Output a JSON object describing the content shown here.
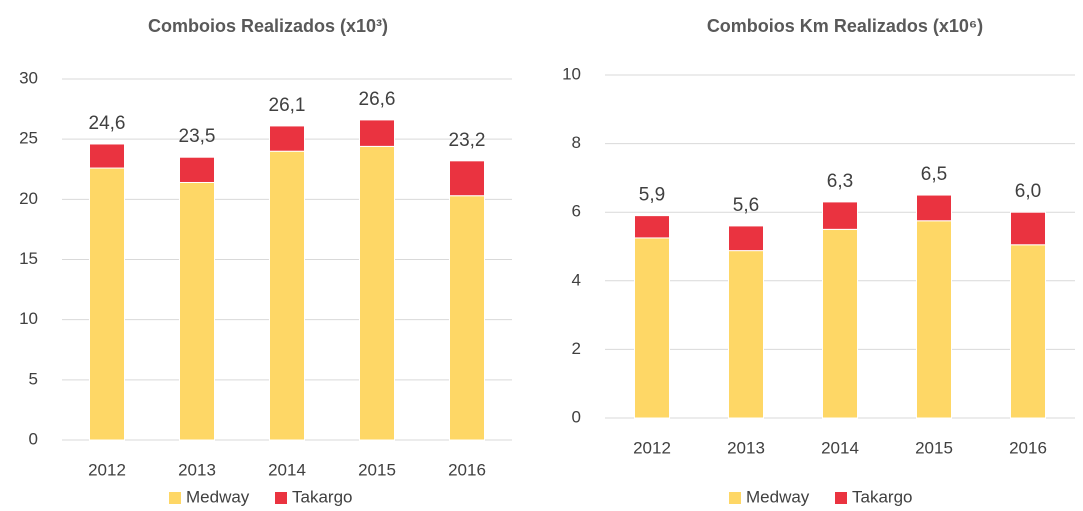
{
  "chart_data": [
    {
      "type": "bar",
      "stacked": true,
      "title": "Comboios Realizados (x10³)",
      "categories": [
        "2012",
        "2013",
        "2014",
        "2015",
        "2016"
      ],
      "series": [
        {
          "name": "Medway",
          "color": "#fed766",
          "values": [
            22.6,
            21.4,
            24.0,
            24.4,
            20.3
          ]
        },
        {
          "name": "Takargo",
          "color": "#ea3340",
          "values": [
            2.0,
            2.1,
            2.1,
            2.2,
            2.9
          ]
        }
      ],
      "totals": [
        24.6,
        23.5,
        26.1,
        26.6,
        23.2
      ],
      "total_labels": [
        "24,6",
        "23,5",
        "26,1",
        "26,6",
        "23,2"
      ],
      "ylim": [
        0,
        30
      ],
      "yticks": [
        0,
        5,
        10,
        15,
        20,
        25,
        30
      ],
      "grid": true,
      "legend": "bottom"
    },
    {
      "type": "bar",
      "stacked": true,
      "title": "Comboios Km Realizados (x10⁶)",
      "categories": [
        "2012",
        "2013",
        "2014",
        "2015",
        "2016"
      ],
      "series": [
        {
          "name": "Medway",
          "color": "#fed766",
          "values": [
            5.25,
            4.88,
            5.5,
            5.75,
            5.05
          ]
        },
        {
          "name": "Takargo",
          "color": "#ea3340",
          "values": [
            0.65,
            0.72,
            0.8,
            0.75,
            0.95
          ]
        }
      ],
      "totals": [
        5.9,
        5.6,
        6.3,
        6.5,
        6.0
      ],
      "total_labels": [
        "5,9",
        "5,6",
        "6,3",
        "6,5",
        "6,0"
      ],
      "ylim": [
        0,
        10
      ],
      "yticks": [
        0,
        2,
        4,
        6,
        8,
        10
      ],
      "grid": true,
      "legend": "bottom"
    }
  ]
}
